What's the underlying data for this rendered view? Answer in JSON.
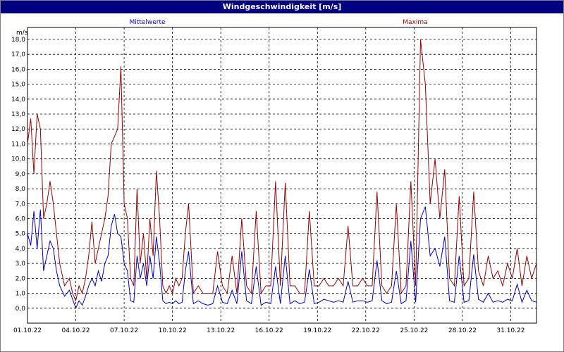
{
  "window": {
    "title": "Windgeschwindigkeit [m/s]"
  },
  "chart_data": {
    "type": "line",
    "title": "Windgeschwindigkeit [m/s]",
    "ylabel": "m/s",
    "ylim": [
      -1,
      18.8
    ],
    "xlim": [
      0,
      31.6
    ],
    "grid": true,
    "y_ticks": [
      "0,0",
      "1,0",
      "2,0",
      "3,0",
      "4,0",
      "5,0",
      "6,0",
      "7,0",
      "8,0",
      "9,0",
      "10,0",
      "11,0",
      "12,0",
      "13,0",
      "14,0",
      "15,0",
      "16,0",
      "17,0",
      "18,0"
    ],
    "x_ticks": [
      "01.10.22",
      "04.10.22",
      "07.10.22",
      "10.10.22",
      "13.10.22",
      "16.10.22",
      "19.10.22",
      "22.10.22",
      "25.10.22",
      "28.10.22",
      "31.10.22"
    ],
    "series": [
      {
        "name": "Mittelwerte",
        "color": "#0000cc",
        "x": [
          0,
          0.2,
          0.4,
          0.6,
          0.8,
          1,
          1.2,
          1.4,
          1.6,
          1.8,
          2,
          2.3,
          2.6,
          2.8,
          3,
          3.2,
          3.4,
          3.6,
          3.8,
          4,
          4.2,
          4.4,
          4.6,
          4.8,
          5,
          5.2,
          5.4,
          5.6,
          5.8,
          6,
          6.2,
          6.4,
          6.6,
          6.8,
          7,
          7.2,
          7.4,
          7.6,
          7.8,
          8,
          8.2,
          8.4,
          8.6,
          8.8,
          9,
          9.2,
          9.4,
          9.6,
          9.8,
          10,
          10.3,
          10.6,
          10.9,
          11.2,
          11.5,
          11.8,
          12.1,
          12.4,
          12.7,
          13,
          13.3,
          13.6,
          13.9,
          14.2,
          14.5,
          14.8,
          15.1,
          15.4,
          15.7,
          16,
          16.3,
          16.6,
          16.9,
          17.2,
          17.5,
          17.8,
          18.1,
          18.4,
          18.7,
          19,
          19.3,
          19.6,
          19.9,
          20.2,
          20.5,
          20.8,
          21.1,
          21.4,
          21.7,
          22,
          22.3,
          22.6,
          22.9,
          23.2,
          23.5,
          23.8,
          24.1,
          24.4,
          24.7,
          25,
          25.3,
          25.6,
          25.9,
          26.2,
          26.5,
          26.8,
          27.1,
          27.4,
          27.7,
          28,
          28.3,
          28.6,
          28.9,
          29.2,
          29.5,
          29.8,
          30.1,
          30.4,
          30.7,
          31,
          31.3,
          31.6
        ],
        "values": [
          5.0,
          4.2,
          6.5,
          4.0,
          6.6,
          2.5,
          3.5,
          4.5,
          4.0,
          2.5,
          1.5,
          0.8,
          1.2,
          0.6,
          0.0,
          0.5,
          0.2,
          0.8,
          1.5,
          2.0,
          1.5,
          2.5,
          1.8,
          3.0,
          3.5,
          5.5,
          6.3,
          5.0,
          4.8,
          3.0,
          2.5,
          0.5,
          0.4,
          3.5,
          2.0,
          3.0,
          1.5,
          3.5,
          2.0,
          4.8,
          3.0,
          0.5,
          0.3,
          0.4,
          0.3,
          0.5,
          0.3,
          0.4,
          2.5,
          3.8,
          0.3,
          0.5,
          0.3,
          0.2,
          0.3,
          1.5,
          0.4,
          0.3,
          1.2,
          0.3,
          3.8,
          0.5,
          0.3,
          2.8,
          0.2,
          0.4,
          0.3,
          2.8,
          0.3,
          3.5,
          0.3,
          0.5,
          0.3,
          0.4,
          2.6,
          0.3,
          0.4,
          0.6,
          0.5,
          0.4,
          0.5,
          0.4,
          1.8,
          0.4,
          0.5,
          0.5,
          0.4,
          0.5,
          3.2,
          0.5,
          0.3,
          0.4,
          2.5,
          0.3,
          0.5,
          4.5,
          0.4,
          6.0,
          6.8,
          3.5,
          4.0,
          2.8,
          4.8,
          0.5,
          0.4,
          3.5,
          0.4,
          0.5,
          3.6,
          0.6,
          0.4,
          1.0,
          0.4,
          0.5,
          0.4,
          0.6,
          0.5,
          1.6,
          0.4,
          1.2,
          0.5,
          0.4
        ]
      },
      {
        "name": "Maxima",
        "color": "#990000",
        "x": [
          0,
          0.2,
          0.4,
          0.6,
          0.8,
          1,
          1.2,
          1.4,
          1.6,
          1.8,
          2,
          2.3,
          2.6,
          2.8,
          3,
          3.2,
          3.4,
          3.6,
          3.8,
          4,
          4.2,
          4.4,
          4.6,
          4.8,
          5,
          5.2,
          5.4,
          5.6,
          5.8,
          6,
          6.2,
          6.4,
          6.6,
          6.8,
          7,
          7.2,
          7.4,
          7.6,
          7.8,
          8,
          8.2,
          8.4,
          8.6,
          8.8,
          9,
          9.2,
          9.4,
          9.6,
          9.8,
          10,
          10.3,
          10.6,
          10.9,
          11.2,
          11.5,
          11.8,
          12.1,
          12.4,
          12.7,
          13,
          13.3,
          13.6,
          13.9,
          14.2,
          14.5,
          14.8,
          15.1,
          15.4,
          15.7,
          16,
          16.3,
          16.6,
          16.9,
          17.2,
          17.5,
          17.8,
          18.1,
          18.4,
          18.7,
          19,
          19.3,
          19.6,
          19.9,
          20.2,
          20.5,
          20.8,
          21.1,
          21.4,
          21.7,
          22,
          22.3,
          22.6,
          22.9,
          23.2,
          23.5,
          23.8,
          24.1,
          24.4,
          24.7,
          25,
          25.3,
          25.6,
          25.9,
          26.2,
          26.5,
          26.8,
          27.1,
          27.4,
          27.7,
          28,
          28.3,
          28.6,
          28.9,
          29.2,
          29.5,
          29.8,
          30.1,
          30.4,
          30.7,
          31,
          31.3,
          31.6
        ],
        "values": [
          11.0,
          12.7,
          9.0,
          13.0,
          12.0,
          6.0,
          7.0,
          8.5,
          7.0,
          5.0,
          3.0,
          1.5,
          2.0,
          1.0,
          0.5,
          1.5,
          1.0,
          2.0,
          3.5,
          5.8,
          3.0,
          4.0,
          5.0,
          6.0,
          7.5,
          11.0,
          11.5,
          12.0,
          16.2,
          7.0,
          6.0,
          2.0,
          1.5,
          8.0,
          3.0,
          5.0,
          2.0,
          6.0,
          3.5,
          9.2,
          6.0,
          1.5,
          1.0,
          1.5,
          1.0,
          2.0,
          1.5,
          2.0,
          5.0,
          7.0,
          1.0,
          1.5,
          1.0,
          1.0,
          1.0,
          3.8,
          1.5,
          1.0,
          3.5,
          1.0,
          6.0,
          1.5,
          1.0,
          6.5,
          1.0,
          1.5,
          1.5,
          8.5,
          1.5,
          8.4,
          1.5,
          1.5,
          1.0,
          1.0,
          6.5,
          1.5,
          1.5,
          2.0,
          1.5,
          1.5,
          2.0,
          1.5,
          5.5,
          1.5,
          1.5,
          2.0,
          1.5,
          1.5,
          7.8,
          1.5,
          1.0,
          1.5,
          7.0,
          1.0,
          1.5,
          8.5,
          1.5,
          18.0,
          15.0,
          7.0,
          10.0,
          6.0,
          9.3,
          2.0,
          1.5,
          7.5,
          1.5,
          2.0,
          7.8,
          2.5,
          1.5,
          3.5,
          2.0,
          2.5,
          1.5,
          3.0,
          2.0,
          4.0,
          1.5,
          3.5,
          2.0,
          3.0
        ]
      }
    ]
  }
}
